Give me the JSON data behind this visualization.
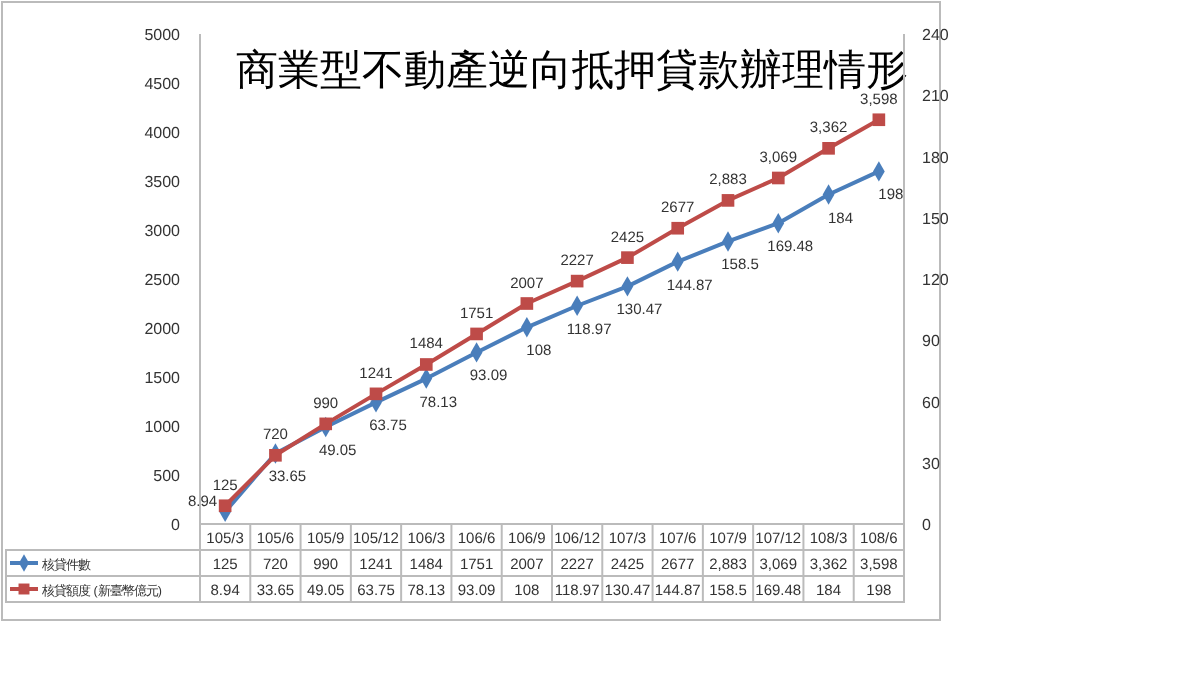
{
  "chart_data": {
    "type": "line",
    "title": "商業型不動產逆向抵押貸款辦理情形",
    "categories": [
      "105/3",
      "105/6",
      "105/9",
      "105/12",
      "106/3",
      "106/6",
      "106/9",
      "106/12",
      "107/3",
      "107/6",
      "107/9",
      "107/12",
      "108/3",
      "108/6"
    ],
    "series": [
      {
        "name": "核貸件數",
        "color": "#4a7ebb",
        "marker": "diamond",
        "axis": "y",
        "values": [
          125,
          720,
          990,
          1241,
          1484,
          1751,
          2007,
          2227,
          2425,
          2677,
          2883,
          3069,
          3362,
          3598
        ],
        "value_labels": [
          "125",
          "720",
          "990",
          "1241",
          "1484",
          "1751",
          "2007",
          "2227",
          "2425",
          "2677",
          "2,883",
          "3,069",
          "3,362",
          "3,598"
        ]
      },
      {
        "name": "核貸額度 (新臺幣億元)",
        "color": "#be4b48",
        "marker": "square",
        "axis": "y2",
        "values": [
          8.94,
          33.65,
          49.05,
          63.75,
          78.13,
          93.09,
          108,
          118.97,
          130.47,
          144.87,
          158.5,
          169.48,
          184,
          198
        ],
        "value_labels": [
          "8.94",
          "33.65",
          "49.05",
          "63.75",
          "78.13",
          "93.09",
          "108",
          "118.97",
          "130.47",
          "144.87",
          "158.5",
          "169.48",
          "184",
          "198"
        ]
      }
    ],
    "ylim": [
      0,
      5000
    ],
    "yticks": [
      0,
      500,
      1000,
      1500,
      2000,
      2500,
      3000,
      3500,
      4000,
      4500,
      5000
    ],
    "y2lim": [
      0,
      240
    ],
    "y2ticks": [
      0,
      30,
      60,
      90,
      120,
      150,
      180,
      210,
      240
    ],
    "legend": "bottom",
    "grid": false
  }
}
